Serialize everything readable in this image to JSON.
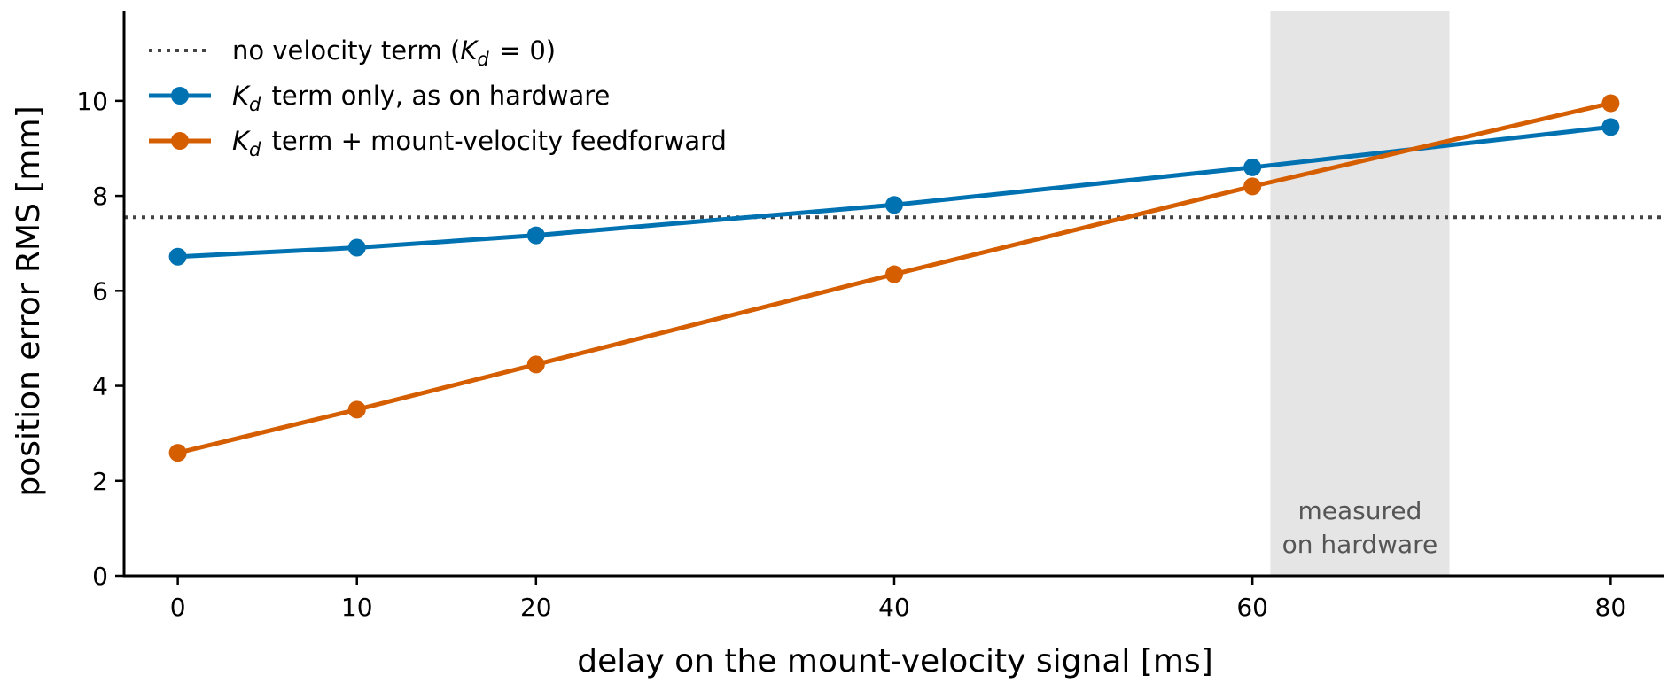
{
  "chart_data": {
    "type": "line",
    "xlabel": "delay on the mount-velocity signal [ms]",
    "ylabel": "position error RMS [mm]",
    "xlim": [
      -3,
      83
    ],
    "ylim": [
      0,
      11.9
    ],
    "xticks": [
      0,
      10,
      20,
      40,
      60,
      80
    ],
    "yticks": [
      0,
      2,
      4,
      6,
      8,
      10
    ],
    "x": [
      0,
      10,
      20,
      40,
      60,
      80
    ],
    "series": [
      {
        "name": "K_d term only, as on hardware",
        "color": "#0072b2",
        "values": [
          6.72,
          6.91,
          7.17,
          7.81,
          8.6,
          9.45
        ]
      },
      {
        "name": "K_d term + mount-velocity feedforward",
        "color": "#d55e00",
        "values": [
          2.59,
          3.5,
          4.45,
          6.35,
          8.2,
          9.95
        ]
      }
    ],
    "reference_lines": [
      {
        "name": "no velocity term (K_d = 0)",
        "y": 7.55,
        "style": "dotted",
        "color": "#444444"
      }
    ],
    "shaded_region": {
      "x_range": [
        61,
        71
      ],
      "label_lines": [
        "measured",
        "on hardware"
      ],
      "color": "#e5e5e5",
      "label_color": "#555555"
    },
    "legend_placement": "top-left",
    "grid": false
  }
}
